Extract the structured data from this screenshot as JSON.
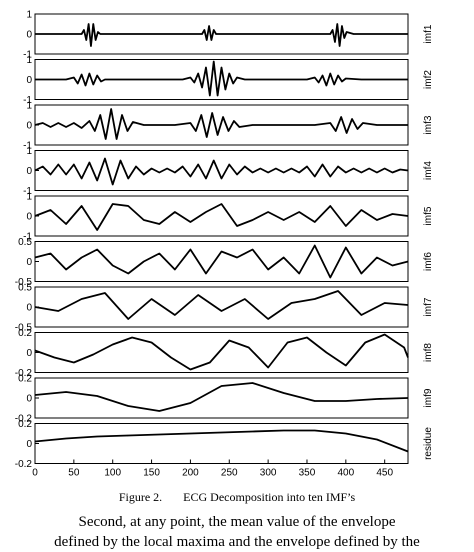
{
  "chart_data": [
    {
      "type": "line",
      "ylabel": "imf1",
      "color": "#000000",
      "xlim": [
        0,
        480
      ],
      "ylim": [
        -1,
        1
      ],
      "yticks": [
        -1,
        0,
        1
      ],
      "x": [
        0,
        60,
        63,
        66,
        69,
        72,
        75,
        78,
        81,
        84,
        90,
        215,
        218,
        221,
        224,
        227,
        230,
        233,
        240,
        380,
        383,
        386,
        389,
        392,
        395,
        398,
        401,
        410,
        480
      ],
      "values": [
        0,
        0,
        0.2,
        -0.3,
        0.5,
        -0.6,
        0.5,
        -0.3,
        0.1,
        0,
        0,
        0,
        0.2,
        -0.3,
        0.4,
        -0.3,
        0.2,
        0,
        0,
        0,
        0.2,
        -0.4,
        0.5,
        -0.6,
        0.4,
        -0.2,
        0.1,
        0,
        0
      ]
    },
    {
      "type": "line",
      "ylabel": "imf2",
      "color": "#000000",
      "xlim": [
        0,
        480
      ],
      "ylim": [
        -1,
        1
      ],
      "yticks": [
        -1,
        0,
        1
      ],
      "x": [
        0,
        20,
        40,
        50,
        55,
        60,
        65,
        70,
        75,
        80,
        85,
        90,
        110,
        130,
        150,
        170,
        190,
        200,
        205,
        210,
        215,
        220,
        225,
        230,
        235,
        240,
        245,
        250,
        255,
        260,
        270,
        290,
        310,
        330,
        350,
        360,
        365,
        370,
        375,
        380,
        385,
        390,
        395,
        400,
        420,
        440,
        460,
        480
      ],
      "values": [
        0,
        0,
        0,
        0.1,
        -0.2,
        0.25,
        -0.3,
        0.3,
        -0.25,
        0.2,
        -0.1,
        0,
        0,
        0,
        0,
        0,
        0,
        0.1,
        -0.15,
        0.3,
        -0.4,
        0.6,
        -0.8,
        0.9,
        -0.8,
        0.6,
        -0.5,
        0.3,
        -0.2,
        0.1,
        0,
        0,
        0,
        0,
        0,
        0.1,
        -0.15,
        0.2,
        -0.3,
        0.3,
        -0.25,
        0.2,
        -0.1,
        0.05,
        0,
        0,
        0,
        0
      ]
    },
    {
      "type": "line",
      "ylabel": "imf3",
      "color": "#000000",
      "xlim": [
        0,
        480
      ],
      "ylim": [
        -1,
        1
      ],
      "yticks": [
        -1,
        0,
        1
      ],
      "x": [
        0,
        10,
        20,
        30,
        40,
        50,
        60,
        70,
        77,
        84,
        91,
        98,
        105,
        112,
        119,
        126,
        140,
        160,
        180,
        200,
        207,
        214,
        221,
        228,
        235,
        242,
        249,
        256,
        263,
        280,
        300,
        320,
        340,
        360,
        380,
        387,
        394,
        401,
        408,
        415,
        422,
        440,
        460,
        480
      ],
      "values": [
        0,
        0.1,
        -0.1,
        0.1,
        -0.1,
        0.1,
        -0.15,
        0.2,
        -0.3,
        0.5,
        -0.7,
        0.8,
        -0.7,
        0.5,
        -0.3,
        0.15,
        0,
        0,
        0,
        0.1,
        -0.3,
        0.5,
        -0.6,
        0.6,
        -0.5,
        0.4,
        -0.3,
        0.2,
        -0.1,
        0,
        0,
        0,
        0,
        0,
        0.1,
        -0.3,
        0.4,
        -0.4,
        0.3,
        -0.2,
        0.1,
        0,
        0,
        0
      ]
    },
    {
      "type": "line",
      "ylabel": "imf4",
      "color": "#000000",
      "xlim": [
        0,
        480
      ],
      "ylim": [
        -1,
        1
      ],
      "yticks": [
        -1,
        0,
        1
      ],
      "x": [
        0,
        10,
        20,
        30,
        40,
        50,
        60,
        70,
        80,
        90,
        100,
        110,
        120,
        130,
        140,
        150,
        160,
        170,
        180,
        190,
        200,
        210,
        220,
        230,
        240,
        250,
        260,
        270,
        280,
        290,
        300,
        310,
        320,
        330,
        340,
        350,
        360,
        370,
        380,
        390,
        400,
        410,
        420,
        430,
        440,
        450,
        460,
        470,
        480
      ],
      "values": [
        0,
        0.2,
        -0.2,
        0.3,
        -0.2,
        0.3,
        -0.4,
        0.4,
        -0.5,
        0.6,
        -0.7,
        0.5,
        -0.4,
        0.2,
        -0.2,
        0.1,
        -0.1,
        0.1,
        -0.1,
        0.2,
        -0.3,
        0.3,
        -0.4,
        0.5,
        -0.4,
        0.3,
        -0.2,
        0.2,
        -0.1,
        0.1,
        -0.1,
        0.1,
        -0.1,
        0.1,
        -0.1,
        0.2,
        -0.3,
        0.3,
        -0.3,
        0.2,
        -0.1,
        0.1,
        -0.1,
        0.1,
        -0.1,
        0.1,
        -0.1,
        0.05,
        0
      ]
    },
    {
      "type": "line",
      "ylabel": "imf5",
      "color": "#000000",
      "xlim": [
        0,
        480
      ],
      "ylim": [
        -1,
        1
      ],
      "yticks": [
        -1,
        0,
        1
      ],
      "x": [
        0,
        20,
        40,
        60,
        80,
        100,
        120,
        140,
        160,
        180,
        200,
        220,
        240,
        260,
        280,
        300,
        320,
        340,
        360,
        380,
        400,
        420,
        440,
        460,
        480
      ],
      "values": [
        0,
        0.3,
        -0.4,
        0.5,
        -0.7,
        0.6,
        0.5,
        -0.2,
        -0.4,
        0.2,
        -0.3,
        0.2,
        0.6,
        -0.5,
        -0.2,
        0.2,
        -0.2,
        0.2,
        -0.3,
        0.5,
        -0.5,
        0.3,
        -0.2,
        0.1,
        0
      ]
    },
    {
      "type": "line",
      "ylabel": "imf6",
      "color": "#000000",
      "xlim": [
        0,
        480
      ],
      "ylim": [
        -0.5,
        0.5
      ],
      "yticks": [
        -0.5,
        0,
        0.5
      ],
      "x": [
        0,
        20,
        40,
        60,
        80,
        100,
        120,
        140,
        160,
        180,
        200,
        220,
        240,
        260,
        280,
        300,
        320,
        340,
        360,
        380,
        400,
        420,
        440,
        460,
        480
      ],
      "values": [
        0.1,
        0.2,
        -0.2,
        0.1,
        0.3,
        -0.1,
        -0.3,
        0,
        0.2,
        -0.2,
        0.3,
        -0.3,
        0.25,
        0.1,
        0.3,
        -0.2,
        0.1,
        -0.3,
        0.4,
        -0.4,
        0.35,
        -0.3,
        0.1,
        -0.1,
        0
      ]
    },
    {
      "type": "line",
      "ylabel": "imf7",
      "color": "#000000",
      "xlim": [
        0,
        480
      ],
      "ylim": [
        -0.5,
        0.5
      ],
      "yticks": [
        -0.5,
        0,
        0.5
      ],
      "x": [
        0,
        30,
        60,
        90,
        120,
        150,
        180,
        210,
        240,
        270,
        300,
        330,
        360,
        390,
        420,
        450,
        480
      ],
      "values": [
        0,
        -0.1,
        0.2,
        0.35,
        -0.3,
        0.2,
        -0.2,
        0.3,
        -0.1,
        0.2,
        -0.3,
        0.1,
        0.2,
        0.4,
        -0.2,
        0.1,
        0.05
      ]
    },
    {
      "type": "line",
      "ylabel": "imf8",
      "color": "#000000",
      "xlim": [
        0,
        480
      ],
      "ylim": [
        -0.2,
        0.2
      ],
      "yticks": [
        -0.2,
        0,
        0.2
      ],
      "x": [
        0,
        25,
        50,
        75,
        100,
        125,
        150,
        175,
        200,
        225,
        250,
        275,
        300,
        325,
        350,
        375,
        400,
        425,
        450,
        475,
        480
      ],
      "values": [
        0.02,
        -0.05,
        -0.1,
        -0.02,
        0.08,
        0.15,
        0.1,
        -0.05,
        -0.17,
        -0.1,
        0.12,
        0.05,
        -0.15,
        0.1,
        0.15,
        0,
        -0.13,
        0.1,
        0.18,
        0.05,
        -0.05
      ]
    },
    {
      "type": "line",
      "ylabel": "imf9",
      "color": "#000000",
      "xlim": [
        0,
        480
      ],
      "ylim": [
        -0.2,
        0.2
      ],
      "yticks": [
        -0.2,
        0,
        0.2
      ],
      "x": [
        0,
        40,
        80,
        120,
        160,
        200,
        240,
        280,
        320,
        360,
        400,
        440,
        480
      ],
      "values": [
        0.03,
        0.06,
        0.02,
        -0.08,
        -0.13,
        -0.05,
        0.12,
        0.15,
        0.05,
        -0.03,
        -0.03,
        -0.01,
        0
      ]
    },
    {
      "type": "line",
      "ylabel": "residue",
      "color": "#000000",
      "xlim": [
        0,
        480
      ],
      "ylim": [
        -0.2,
        0.2
      ],
      "yticks": [
        -0.2,
        0,
        0.2
      ],
      "xticks": [
        0,
        50,
        100,
        150,
        200,
        250,
        300,
        350,
        400,
        450
      ],
      "x": [
        0,
        40,
        80,
        120,
        160,
        200,
        240,
        280,
        320,
        360,
        400,
        440,
        480
      ],
      "values": [
        0.02,
        0.05,
        0.07,
        0.08,
        0.09,
        0.1,
        0.11,
        0.12,
        0.13,
        0.13,
        0.1,
        0.04,
        -0.08
      ]
    }
  ],
  "caption": {
    "label": "Figure 2.",
    "text": "ECG Decomposition into ten IMF’s"
  },
  "body_text": [
    "Second, at any point, the mean value of the envelope",
    "defined by the local maxima and the envelope defined by the"
  ]
}
